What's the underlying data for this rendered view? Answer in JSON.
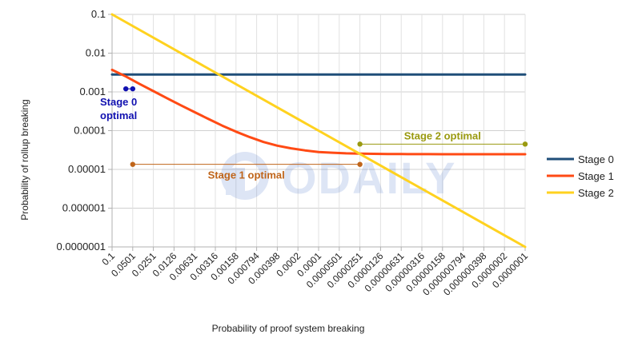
{
  "chart_data": {
    "type": "line",
    "title": "",
    "xlabel": "Probability of proof system breaking",
    "ylabel": "Probability of rollup breaking",
    "y_scale": "log",
    "ylim": [
      1e-07,
      0.1
    ],
    "y_ticks": [
      "0.1",
      "0.01",
      "0.001",
      "0.0001",
      "0.00001",
      "0.000001",
      "0.0000001"
    ],
    "x_scale": "log",
    "xlim": [
      0.1,
      1e-07
    ],
    "x_ticks": [
      "0.1",
      "0.0501",
      "0.0251",
      "0.0126",
      "0.00631",
      "0.00316",
      "0.00158",
      "0.000794",
      "0.000398",
      "0.0002",
      "0.0001",
      "0.0000501",
      "0.0000251",
      "0.0000126",
      "0.00000631",
      "0.00000316",
      "0.00000158",
      "0.000000794",
      "0.000000398",
      "0.0000002",
      "0.0000001"
    ],
    "grid": true,
    "legend_position": "right",
    "series": [
      {
        "name": "Stage 0",
        "color": "#1f4e79",
        "x": [
          0.1,
          1e-07
        ],
        "y": [
          0.0028,
          0.0028
        ]
      },
      {
        "name": "Stage 1",
        "color": "#ff4a14",
        "x": [
          0.1,
          0.0631,
          0.0398,
          0.0251,
          0.0158,
          0.01,
          0.00631,
          0.00398,
          0.00251,
          0.00158,
          0.001,
          0.000631,
          0.000398,
          0.000251,
          0.000158,
          0.0001,
          6.31e-05,
          3.98e-05,
          2.51e-05,
          1.58e-05,
          1e-05,
          6.31e-06,
          3.98e-06,
          2.51e-06,
          1.58e-06,
          1e-06,
          6.31e-07,
          3.98e-07,
          2.51e-07,
          1.58e-07,
          1e-07
        ],
        "y": [
          0.0037,
          0.0025,
          0.0016,
          0.00105,
          0.00068,
          0.00045,
          0.0003,
          0.0002,
          0.000135,
          9.4e-05,
          6.8e-05,
          5.1e-05,
          4.1e-05,
          3.5e-05,
          3.1e-05,
          2.8e-05,
          2.7e-05,
          2.6e-05,
          2.55e-05,
          2.52e-05,
          2.5e-05,
          2.49e-05,
          2.48e-05,
          2.48e-05,
          2.47e-05,
          2.47e-05,
          2.47e-05,
          2.47e-05,
          2.47e-05,
          2.47e-05,
          2.47e-05
        ]
      },
      {
        "name": "Stage 2",
        "color": "#ffd21f",
        "x": [
          0.1,
          1e-07
        ],
        "y": [
          0.1,
          1e-07
        ]
      }
    ],
    "annotations": [
      {
        "text_lines": [
          "Stage 0",
          "optimal"
        ],
        "color": "#1010b0",
        "range_x": [
          0.0631,
          0.0501
        ],
        "y": 0.0012
      },
      {
        "text_lines": [
          "Stage 1 optimal"
        ],
        "color": "#c0651a",
        "range_x": [
          0.0501,
          2.51e-05
        ],
        "y": 1.35e-05
      },
      {
        "text_lines": [
          "Stage 2 optimal"
        ],
        "color": "#9a9a10",
        "range_x": [
          2.51e-05,
          1e-07
        ],
        "y": 4.5e-05
      }
    ]
  },
  "watermark": {
    "text": "ODAILY",
    "color": "#4a73c9"
  }
}
